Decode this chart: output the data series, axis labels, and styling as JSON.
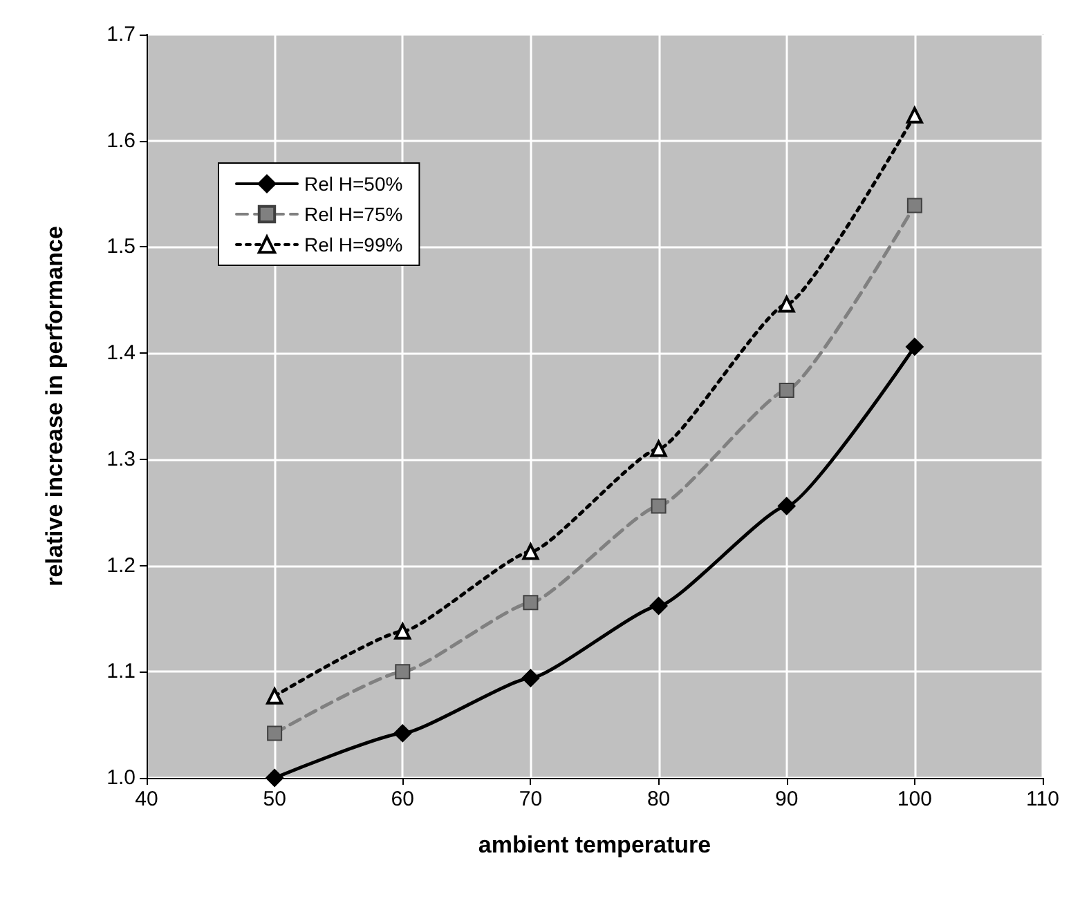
{
  "chart_data": {
    "type": "line",
    "xlabel": "ambient temperature",
    "ylabel": "relative increase in performance",
    "x": [
      50,
      60,
      70,
      80,
      90,
      100
    ],
    "series": [
      {
        "name": "Rel H=50%",
        "color": "#000000",
        "marker": "diamond",
        "line_style": "solid",
        "values": [
          1.0,
          1.042,
          1.094,
          1.162,
          1.256,
          1.406
        ]
      },
      {
        "name": "Rel H=75%",
        "color": "#808080",
        "marker": "square",
        "line_style": "dashed",
        "values": [
          1.042,
          1.1,
          1.165,
          1.256,
          1.365,
          1.539
        ]
      },
      {
        "name": "Rel H=99%",
        "color": "#000000",
        "marker": "triangle",
        "line_style": "dotted",
        "values": [
          1.077,
          1.138,
          1.213,
          1.31,
          1.446,
          1.624
        ]
      }
    ],
    "xlim": [
      40,
      110
    ],
    "xticks": [
      40,
      50,
      60,
      70,
      80,
      90,
      100,
      110
    ],
    "ylim": [
      1.0,
      1.7
    ],
    "yticks": [
      {
        "value": 1,
        "label": "1.0"
      },
      1.1,
      1.2,
      1.3,
      1.4,
      1.5,
      1.6,
      1.7
    ],
    "grid": true,
    "legend": "top left"
  }
}
